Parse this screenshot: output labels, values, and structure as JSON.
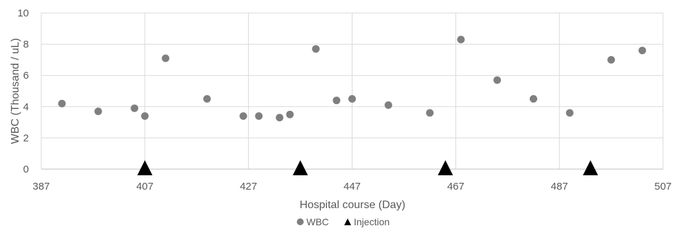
{
  "chart_data": {
    "type": "scatter",
    "xlabel": "Hospital course (Day)",
    "ylabel": "WBC (Thousand / uL)",
    "xlim": [
      387,
      507
    ],
    "ylim": [
      0,
      10
    ],
    "x_ticks": [
      387,
      407,
      427,
      447,
      467,
      487,
      507
    ],
    "y_ticks": [
      0,
      2,
      4,
      6,
      8,
      10
    ],
    "grid": true,
    "legend_position": "bottom",
    "series": [
      {
        "name": "WBC",
        "marker": "circle",
        "color": "#7f7f7f",
        "points": [
          {
            "x": 391,
            "y": 4.2
          },
          {
            "x": 398,
            "y": 3.7
          },
          {
            "x": 405,
            "y": 3.9
          },
          {
            "x": 407,
            "y": 3.4
          },
          {
            "x": 411,
            "y": 7.1
          },
          {
            "x": 419,
            "y": 4.5
          },
          {
            "x": 426,
            "y": 3.4
          },
          {
            "x": 429,
            "y": 3.4
          },
          {
            "x": 433,
            "y": 3.3
          },
          {
            "x": 435,
            "y": 3.5
          },
          {
            "x": 440,
            "y": 7.7
          },
          {
            "x": 444,
            "y": 4.4
          },
          {
            "x": 447,
            "y": 4.5
          },
          {
            "x": 454,
            "y": 4.1
          },
          {
            "x": 462,
            "y": 3.6
          },
          {
            "x": 468,
            "y": 8.3
          },
          {
            "x": 475,
            "y": 5.7
          },
          {
            "x": 482,
            "y": 4.5
          },
          {
            "x": 489,
            "y": 3.6
          },
          {
            "x": 497,
            "y": 7.0
          },
          {
            "x": 503,
            "y": 7.6
          }
        ]
      },
      {
        "name": "Injection",
        "marker": "triangle",
        "color": "#000000",
        "points": [
          {
            "x": 407,
            "y": 0
          },
          {
            "x": 437,
            "y": 0
          },
          {
            "x": 465,
            "y": 0
          },
          {
            "x": 493,
            "y": 0
          }
        ]
      }
    ]
  }
}
